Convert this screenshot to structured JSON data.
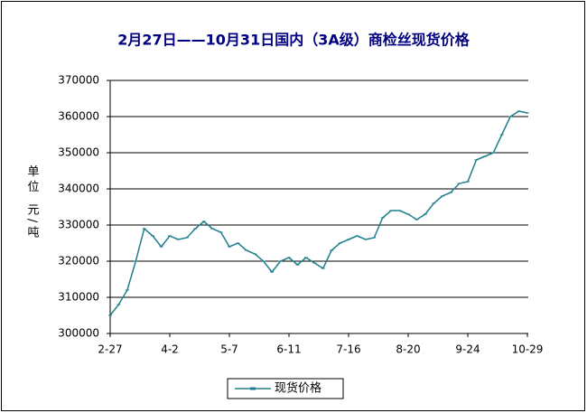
{
  "chart_data": {
    "type": "line",
    "title": "2月27日——10月31日国内（3A级）商检丝现货价格",
    "y_label": "单位 元/吨",
    "categories": [
      "2-27",
      null,
      null,
      null,
      null,
      null,
      null,
      "4-2",
      null,
      null,
      null,
      null,
      null,
      null,
      "5-7",
      null,
      null,
      null,
      null,
      null,
      null,
      "6-11",
      null,
      null,
      null,
      null,
      null,
      null,
      "7-16",
      null,
      null,
      null,
      null,
      null,
      null,
      "8-20",
      null,
      null,
      null,
      null,
      null,
      null,
      "9-24",
      null,
      null,
      null,
      null,
      null,
      null,
      "10-29"
    ],
    "series": [
      {
        "name": "现货价格",
        "color": "#1f7f8c",
        "values": [
          305000,
          308000,
          312000,
          320000,
          329000,
          327000,
          324000,
          327000,
          326000,
          326500,
          329000,
          331000,
          329000,
          328000,
          324000,
          325000,
          323000,
          322000,
          320000,
          317000,
          320000,
          321000,
          319000,
          321000,
          319500,
          318000,
          323000,
          325000,
          326000,
          327000,
          326000,
          326500,
          332000,
          334000,
          334000,
          333000,
          331500,
          333000,
          336000,
          338000,
          339000,
          341500,
          342000,
          348000,
          349000,
          350000,
          355000,
          360000,
          361500,
          361000
        ]
      }
    ],
    "ylim": [
      300000,
      370000
    ],
    "yticks": [
      300000,
      310000,
      320000,
      330000,
      340000,
      350000,
      360000,
      370000
    ],
    "grid": true,
    "legend": "bottom"
  }
}
